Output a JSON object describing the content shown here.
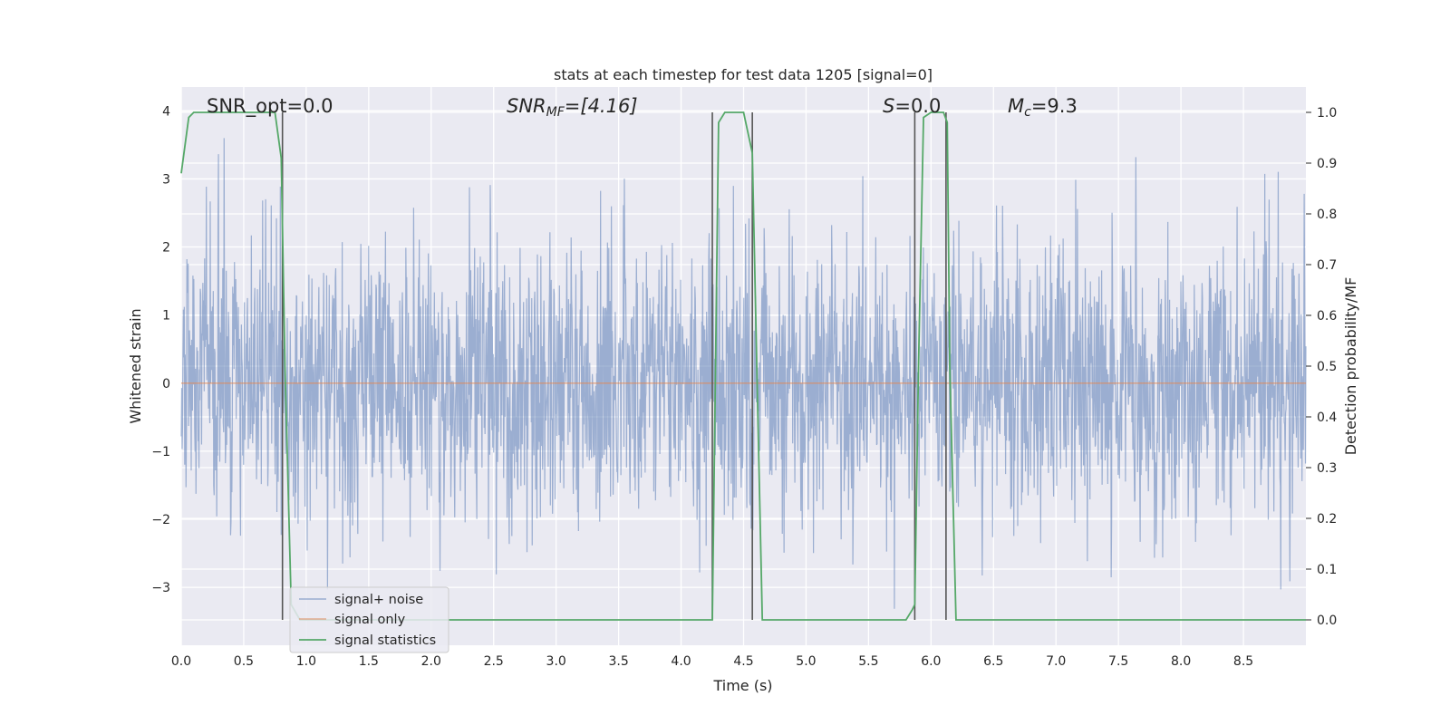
{
  "chart_data": {
    "type": "line",
    "title": "stats at each timestep for test data 1205 [signal=0]",
    "xlabel": "Time (s)",
    "ylabel": "Whitened strain",
    "ylabel_right": "Detection probability/MF",
    "xlim": [
      0.0,
      9.0
    ],
    "ylim": [
      -3.85,
      4.35
    ],
    "ylim_right": [
      -0.05,
      1.05
    ],
    "x_ticks": [
      0.0,
      0.5,
      1.0,
      1.5,
      2.0,
      2.5,
      3.0,
      3.5,
      4.0,
      4.5,
      5.0,
      5.5,
      6.0,
      6.5,
      7.0,
      7.5,
      8.0,
      8.5
    ],
    "x_tick_labels": [
      "0.0",
      "0.5",
      "1.0",
      "1.5",
      "2.0",
      "2.5",
      "3.0",
      "3.5",
      "4.0",
      "4.5",
      "5.0",
      "5.5",
      "6.0",
      "6.5",
      "7.0",
      "7.5",
      "8.0",
      "8.5"
    ],
    "y_ticks": [
      -3,
      -2,
      -1,
      0,
      1,
      2,
      3,
      4
    ],
    "y_tick_labels": [
      "−3",
      "−2",
      "−1",
      "0",
      "1",
      "2",
      "3",
      "4"
    ],
    "y_right_ticks": [
      0.0,
      0.1,
      0.2,
      0.3,
      0.4,
      0.5,
      0.6,
      0.7,
      0.8,
      0.9,
      1.0
    ],
    "y_right_tick_labels": [
      "0.0",
      "0.1",
      "0.2",
      "0.3",
      "0.4",
      "0.5",
      "0.6",
      "0.7",
      "0.8",
      "0.9",
      "1.0"
    ],
    "grid": true,
    "legend_position": "lower-left",
    "annotations": {
      "snr_opt": "SNR_opt=0.0",
      "snr_mf_main": "SNR",
      "snr_mf_sub": "MF",
      "snr_mf_value": "=[4.16]",
      "s_main": "S",
      "s_value": "=0.0",
      "mc_main": "M",
      "mc_sub": "c",
      "mc_value": "=9.3"
    },
    "series": [
      {
        "name": "signal+ noise",
        "color": "#4c72b0",
        "axis": "left",
        "kind": "whitened noise, approx. gaussian, range about -3.5 to 3.6"
      },
      {
        "name": "signal only",
        "color": "#dd8452",
        "axis": "left",
        "x": [
          0.0,
          9.0
        ],
        "y": [
          0.0,
          0.0
        ]
      },
      {
        "name": "signal statistics",
        "color": "#55a868",
        "axis": "right",
        "x": [
          0.0,
          0.06,
          0.1,
          0.15,
          0.5,
          0.75,
          0.8,
          0.83,
          0.88,
          0.95,
          4.0,
          4.25,
          4.3,
          4.35,
          4.45,
          4.5,
          4.57,
          4.61,
          4.65,
          5.8,
          5.85,
          5.87,
          5.9,
          5.94,
          6.0,
          6.07,
          6.1,
          6.13,
          6.15,
          6.2,
          6.25,
          9.0
        ],
        "y": [
          0.88,
          0.99,
          1.0,
          1.0,
          1.0,
          1.0,
          0.91,
          0.5,
          0.03,
          0.0,
          0.0,
          0.0,
          0.98,
          1.0,
          1.0,
          1.0,
          0.92,
          0.45,
          0.0,
          0.0,
          0.02,
          0.03,
          0.5,
          0.99,
          1.0,
          1.0,
          1.0,
          0.98,
          0.5,
          0.0,
          0.0,
          0.0
        ]
      }
    ],
    "vertical_markers": [
      0.81,
      4.25,
      4.57,
      5.87,
      6.12
    ]
  }
}
